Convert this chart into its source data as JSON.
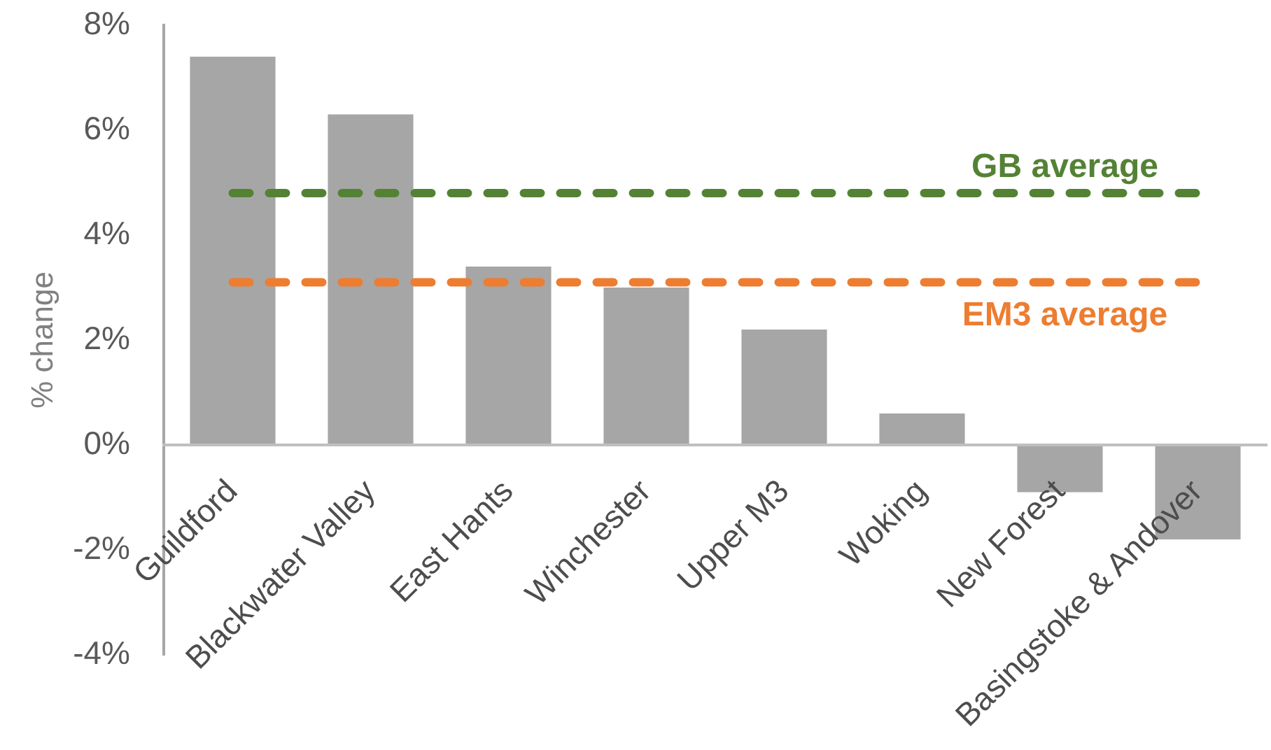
{
  "chart_data": {
    "type": "bar",
    "categories": [
      "Guildford",
      "Blackwater Valley",
      "East Hants",
      "Winchester",
      "Upper M3",
      "Woking",
      "New Forest",
      "Basingstoke & Andover"
    ],
    "values": [
      7.4,
      6.3,
      3.4,
      3.0,
      2.2,
      0.6,
      -0.9,
      -1.8
    ],
    "color": "#a6a6a6",
    "ylabel": "% change",
    "ylim": [
      -4,
      8
    ],
    "yticks": [
      {
        "value": -4,
        "label": "-4%"
      },
      {
        "value": -2,
        "label": "-2%"
      },
      {
        "value": 0,
        "label": "0%"
      },
      {
        "value": 2,
        "label": "2%"
      },
      {
        "value": 4,
        "label": "4%"
      },
      {
        "value": 6,
        "label": "6%"
      },
      {
        "value": 8,
        "label": "8%"
      }
    ],
    "grid": false,
    "legend": false,
    "ref_lines": [
      {
        "axis": "y",
        "value": 4.8,
        "label": "GB average",
        "color": "#548235",
        "line_style": "dashed"
      },
      {
        "axis": "y",
        "value": 3.1,
        "label": "EM3 average",
        "color": "#ed7d31",
        "line_style": "dashed"
      }
    ]
  }
}
